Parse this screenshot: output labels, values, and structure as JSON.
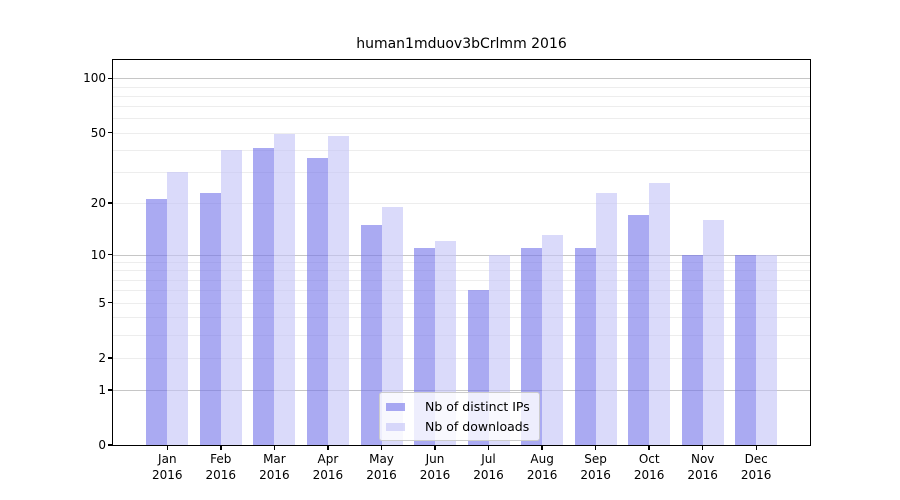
{
  "chart_data": {
    "type": "bar",
    "title": "human1mduov3bCrlmm 2016",
    "y_scale": "log1p",
    "ylim": [
      0,
      115
    ],
    "grid": true,
    "legend_position": "lower-center",
    "months": [
      {
        "month": "Jan",
        "year": "2016"
      },
      {
        "month": "Feb",
        "year": "2016"
      },
      {
        "month": "Mar",
        "year": "2016"
      },
      {
        "month": "Apr",
        "year": "2016"
      },
      {
        "month": "May",
        "year": "2016"
      },
      {
        "month": "Jun",
        "year": "2016"
      },
      {
        "month": "Jul",
        "year": "2016"
      },
      {
        "month": "Aug",
        "year": "2016"
      },
      {
        "month": "Sep",
        "year": "2016"
      },
      {
        "month": "Oct",
        "year": "2016"
      },
      {
        "month": "Nov",
        "year": "2016"
      },
      {
        "month": "Dec",
        "year": "2016"
      }
    ],
    "series": [
      {
        "name": "Nb of distinct IPs",
        "color": "rgba(118,118,234,0.62)",
        "values": [
          21,
          23,
          41,
          36,
          15,
          11,
          6,
          11,
          11,
          17,
          10,
          10
        ]
      },
      {
        "name": "Nb of downloads",
        "color": "rgba(195,195,247,0.62)",
        "values": [
          30,
          40,
          49,
          48,
          19,
          12,
          10,
          13,
          23,
          26,
          16,
          10
        ]
      }
    ],
    "y_ticks": [
      0,
      1,
      2,
      5,
      10,
      20,
      50,
      100
    ],
    "gridlines_minor": [
      2,
      3,
      4,
      5,
      6,
      7,
      8,
      9,
      20,
      30,
      40,
      50,
      60,
      70,
      80,
      90
    ],
    "gridlines_major": [
      1,
      10,
      100
    ],
    "colors": {
      "grid_minor": "#ededed",
      "grid_major": "#c6c6c6",
      "axis": "#000000",
      "background": "#ffffff"
    }
  }
}
